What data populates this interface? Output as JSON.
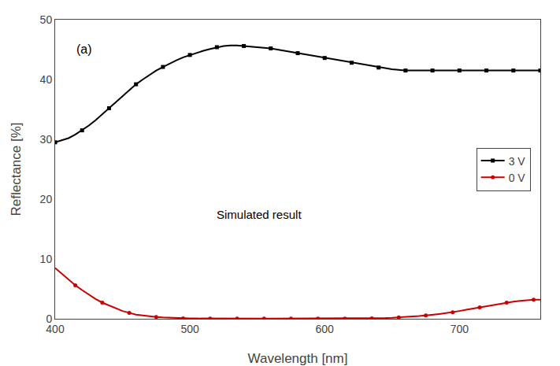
{
  "chart_data": {
    "type": "line",
    "xlabel": "Wavelength [nm]",
    "ylabel": "Reflectance [%]",
    "annotations": [
      "Simulated result",
      "(a)"
    ],
    "x": [
      400,
      405,
      410,
      415,
      420,
      425,
      430,
      435,
      440,
      445,
      450,
      455,
      460,
      465,
      470,
      475,
      480,
      485,
      490,
      495,
      500,
      505,
      510,
      515,
      520,
      525,
      530,
      535,
      540,
      545,
      550,
      555,
      560,
      565,
      570,
      575,
      580,
      585,
      590,
      595,
      600,
      605,
      610,
      615,
      620,
      625,
      630,
      635,
      640,
      645,
      650,
      655,
      660,
      665,
      670,
      675,
      680,
      685,
      690,
      695,
      700,
      705,
      710,
      715,
      720,
      725,
      730,
      735,
      740,
      745,
      750,
      755,
      760
    ],
    "series": [
      {
        "name": "3 V",
        "color": "#000000",
        "marker": "square",
        "values": [
          29.5,
          29.8,
          30.2,
          30.8,
          31.5,
          32.3,
          33.2,
          34.2,
          35.2,
          36.3,
          37.3,
          38.3,
          39.2,
          40.0,
          40.8,
          41.5,
          42.1,
          42.7,
          43.2,
          43.7,
          44.1,
          44.5,
          44.8,
          45.1,
          45.4,
          45.6,
          45.7,
          45.7,
          45.6,
          45.5,
          45.4,
          45.3,
          45.2,
          45.0,
          44.8,
          44.6,
          44.4,
          44.2,
          44.0,
          43.8,
          43.6,
          43.4,
          43.2,
          43.0,
          42.8,
          42.6,
          42.4,
          42.2,
          42.0,
          41.8,
          41.7,
          41.6,
          41.5,
          41.5,
          41.5,
          41.5,
          41.5,
          41.5,
          41.5,
          41.5,
          41.5,
          41.5,
          41.5,
          41.5,
          41.5,
          41.5,
          41.5,
          41.5,
          41.5,
          41.5,
          41.5,
          41.5,
          41.5
        ]
      },
      {
        "name": "0 V",
        "color": "#cc0000",
        "marker": "circle",
        "values": [
          8.5,
          7.5,
          6.5,
          5.6,
          4.8,
          4.0,
          3.3,
          2.7,
          2.2,
          1.7,
          1.3,
          1.0,
          0.7,
          0.55,
          0.4,
          0.3,
          0.22,
          0.16,
          0.12,
          0.08,
          0.06,
          0.05,
          0.04,
          0.04,
          0.04,
          0.04,
          0.04,
          0.04,
          0.04,
          0.04,
          0.04,
          0.04,
          0.04,
          0.04,
          0.04,
          0.04,
          0.04,
          0.04,
          0.04,
          0.04,
          0.04,
          0.04,
          0.04,
          0.04,
          0.04,
          0.05,
          0.06,
          0.08,
          0.1,
          0.13,
          0.17,
          0.22,
          0.28,
          0.35,
          0.45,
          0.55,
          0.65,
          0.8,
          0.95,
          1.1,
          1.3,
          1.5,
          1.7,
          1.9,
          2.1,
          2.3,
          2.5,
          2.7,
          2.85,
          3.0,
          3.1,
          3.2,
          3.2
        ]
      }
    ],
    "xlim": [
      400,
      760
    ],
    "ylim": [
      0,
      50
    ],
    "xticks": [
      400,
      500,
      600,
      700
    ],
    "yticks": [
      0,
      10,
      20,
      30,
      40,
      50
    ],
    "grid": false,
    "legend": "right"
  }
}
